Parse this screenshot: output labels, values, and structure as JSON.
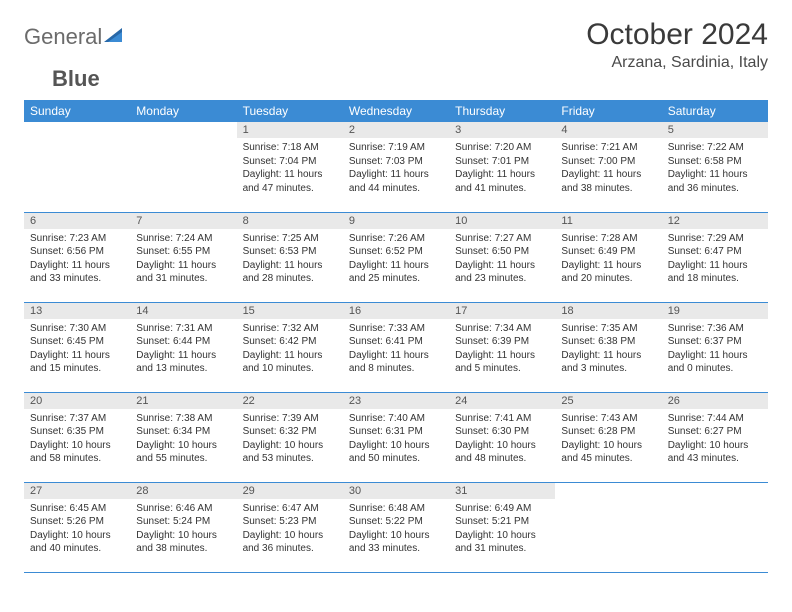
{
  "logo": {
    "text1": "General",
    "text2": "Blue"
  },
  "title": "October 2024",
  "location": "Arzana, Sardinia, Italy",
  "dayHeaders": [
    "Sunday",
    "Monday",
    "Tuesday",
    "Wednesday",
    "Thursday",
    "Friday",
    "Saturday"
  ],
  "colors": {
    "headerBg": "#3b8bd4",
    "headerText": "#ffffff",
    "dayBarBg": "#e9e9e9",
    "borderColor": "#3b8bd4",
    "logoGray": "#6b6b6b",
    "titleColor": "#3a3a3a"
  },
  "startOffset": 2,
  "days": [
    {
      "n": 1,
      "sunrise": "7:18 AM",
      "sunset": "7:04 PM",
      "daylight": "11 hours and 47 minutes."
    },
    {
      "n": 2,
      "sunrise": "7:19 AM",
      "sunset": "7:03 PM",
      "daylight": "11 hours and 44 minutes."
    },
    {
      "n": 3,
      "sunrise": "7:20 AM",
      "sunset": "7:01 PM",
      "daylight": "11 hours and 41 minutes."
    },
    {
      "n": 4,
      "sunrise": "7:21 AM",
      "sunset": "7:00 PM",
      "daylight": "11 hours and 38 minutes."
    },
    {
      "n": 5,
      "sunrise": "7:22 AM",
      "sunset": "6:58 PM",
      "daylight": "11 hours and 36 minutes."
    },
    {
      "n": 6,
      "sunrise": "7:23 AM",
      "sunset": "6:56 PM",
      "daylight": "11 hours and 33 minutes."
    },
    {
      "n": 7,
      "sunrise": "7:24 AM",
      "sunset": "6:55 PM",
      "daylight": "11 hours and 31 minutes."
    },
    {
      "n": 8,
      "sunrise": "7:25 AM",
      "sunset": "6:53 PM",
      "daylight": "11 hours and 28 minutes."
    },
    {
      "n": 9,
      "sunrise": "7:26 AM",
      "sunset": "6:52 PM",
      "daylight": "11 hours and 25 minutes."
    },
    {
      "n": 10,
      "sunrise": "7:27 AM",
      "sunset": "6:50 PM",
      "daylight": "11 hours and 23 minutes."
    },
    {
      "n": 11,
      "sunrise": "7:28 AM",
      "sunset": "6:49 PM",
      "daylight": "11 hours and 20 minutes."
    },
    {
      "n": 12,
      "sunrise": "7:29 AM",
      "sunset": "6:47 PM",
      "daylight": "11 hours and 18 minutes."
    },
    {
      "n": 13,
      "sunrise": "7:30 AM",
      "sunset": "6:45 PM",
      "daylight": "11 hours and 15 minutes."
    },
    {
      "n": 14,
      "sunrise": "7:31 AM",
      "sunset": "6:44 PM",
      "daylight": "11 hours and 13 minutes."
    },
    {
      "n": 15,
      "sunrise": "7:32 AM",
      "sunset": "6:42 PM",
      "daylight": "11 hours and 10 minutes."
    },
    {
      "n": 16,
      "sunrise": "7:33 AM",
      "sunset": "6:41 PM",
      "daylight": "11 hours and 8 minutes."
    },
    {
      "n": 17,
      "sunrise": "7:34 AM",
      "sunset": "6:39 PM",
      "daylight": "11 hours and 5 minutes."
    },
    {
      "n": 18,
      "sunrise": "7:35 AM",
      "sunset": "6:38 PM",
      "daylight": "11 hours and 3 minutes."
    },
    {
      "n": 19,
      "sunrise": "7:36 AM",
      "sunset": "6:37 PM",
      "daylight": "11 hours and 0 minutes."
    },
    {
      "n": 20,
      "sunrise": "7:37 AM",
      "sunset": "6:35 PM",
      "daylight": "10 hours and 58 minutes."
    },
    {
      "n": 21,
      "sunrise": "7:38 AM",
      "sunset": "6:34 PM",
      "daylight": "10 hours and 55 minutes."
    },
    {
      "n": 22,
      "sunrise": "7:39 AM",
      "sunset": "6:32 PM",
      "daylight": "10 hours and 53 minutes."
    },
    {
      "n": 23,
      "sunrise": "7:40 AM",
      "sunset": "6:31 PM",
      "daylight": "10 hours and 50 minutes."
    },
    {
      "n": 24,
      "sunrise": "7:41 AM",
      "sunset": "6:30 PM",
      "daylight": "10 hours and 48 minutes."
    },
    {
      "n": 25,
      "sunrise": "7:43 AM",
      "sunset": "6:28 PM",
      "daylight": "10 hours and 45 minutes."
    },
    {
      "n": 26,
      "sunrise": "7:44 AM",
      "sunset": "6:27 PM",
      "daylight": "10 hours and 43 minutes."
    },
    {
      "n": 27,
      "sunrise": "6:45 AM",
      "sunset": "5:26 PM",
      "daylight": "10 hours and 40 minutes."
    },
    {
      "n": 28,
      "sunrise": "6:46 AM",
      "sunset": "5:24 PM",
      "daylight": "10 hours and 38 minutes."
    },
    {
      "n": 29,
      "sunrise": "6:47 AM",
      "sunset": "5:23 PM",
      "daylight": "10 hours and 36 minutes."
    },
    {
      "n": 30,
      "sunrise": "6:48 AM",
      "sunset": "5:22 PM",
      "daylight": "10 hours and 33 minutes."
    },
    {
      "n": 31,
      "sunrise": "6:49 AM",
      "sunset": "5:21 PM",
      "daylight": "10 hours and 31 minutes."
    }
  ]
}
